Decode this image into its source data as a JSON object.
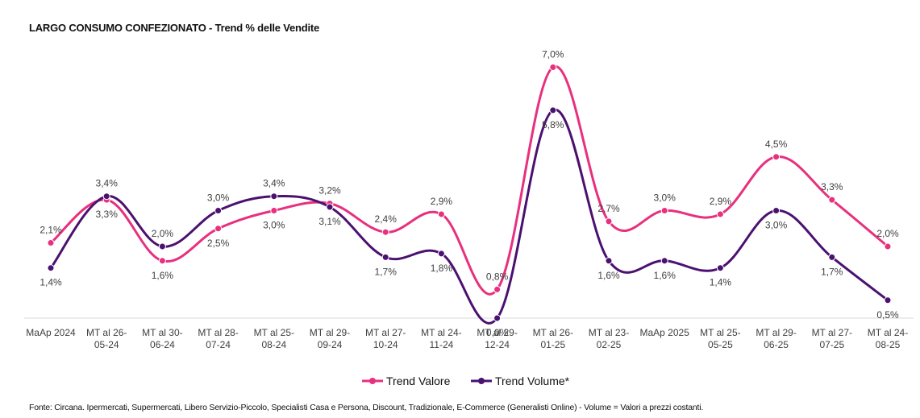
{
  "title": "LARGO CONSUMO CONFEZIONATO - Trend % delle Vendite",
  "footer": "Fonte: Circana. Ipermercati, Supermercati, Libero Servizio-Piccolo, Specialisti Casa e Persona, Discount, Tradizionale, E-Commerce (Generalisti Online) - Volume = Valori a prezzi costanti.",
  "chart_data": {
    "type": "line",
    "title": "LARGO CONSUMO CONFEZIONATO - Trend % delle Vendite",
    "xlabel": "",
    "ylabel": "",
    "ylim": [
      0,
      7.0
    ],
    "grid": false,
    "legend_position": "bottom",
    "categories": [
      [
        "MaAp 2024"
      ],
      [
        "MT al 26-",
        "05-24"
      ],
      [
        "MT al 30-",
        "06-24"
      ],
      [
        "MT al 28-",
        "07-24"
      ],
      [
        "MT al 25-",
        "08-24"
      ],
      [
        "MT al 29-",
        "09-24"
      ],
      [
        "MT al 27-",
        "10-24"
      ],
      [
        "MT al 24-",
        "11-24"
      ],
      [
        "MT al 29-",
        "12-24"
      ],
      [
        "MT al 26-",
        "01-25"
      ],
      [
        "MT al 23-",
        "02-25"
      ],
      [
        "MaAp 2025"
      ],
      [
        "MT al 25-",
        "05-25"
      ],
      [
        "MT al 29-",
        "06-25"
      ],
      [
        "MT al 27-",
        "07-25"
      ],
      [
        "MT al 24-",
        "08-25"
      ]
    ],
    "series": [
      {
        "name": "Trend Valore",
        "color": "#E8307E",
        "values": [
          2.1,
          3.3,
          1.6,
          2.5,
          3.0,
          3.2,
          2.4,
          2.9,
          0.8,
          7.0,
          2.7,
          3.0,
          2.9,
          4.5,
          3.3,
          2.0
        ],
        "labels": [
          "2,1%",
          "3,3%",
          "1,6%",
          "2,5%",
          "3,0%",
          "3,2%",
          "2,4%",
          "2,9%",
          "0,8%",
          "7,0%",
          "2,7%",
          "3,0%",
          "2,9%",
          "4,5%",
          "3,3%",
          "2,0%"
        ]
      },
      {
        "name": "Trend Volume*",
        "color": "#4B1170",
        "values": [
          1.4,
          3.4,
          2.0,
          3.0,
          3.4,
          3.1,
          1.7,
          1.8,
          0.0,
          5.8,
          1.6,
          1.6,
          1.4,
          3.0,
          1.7,
          0.5
        ],
        "labels": [
          "1,4%",
          "3,4%",
          "2,0%",
          "3,0%",
          "3,4%",
          "3,1%",
          "1,7%",
          "1,8%",
          "0,0%",
          "5,8%",
          "1,6%",
          "1,6%",
          "1,4%",
          "3,0%",
          "1,7%",
          "0,5%"
        ]
      }
    ]
  }
}
